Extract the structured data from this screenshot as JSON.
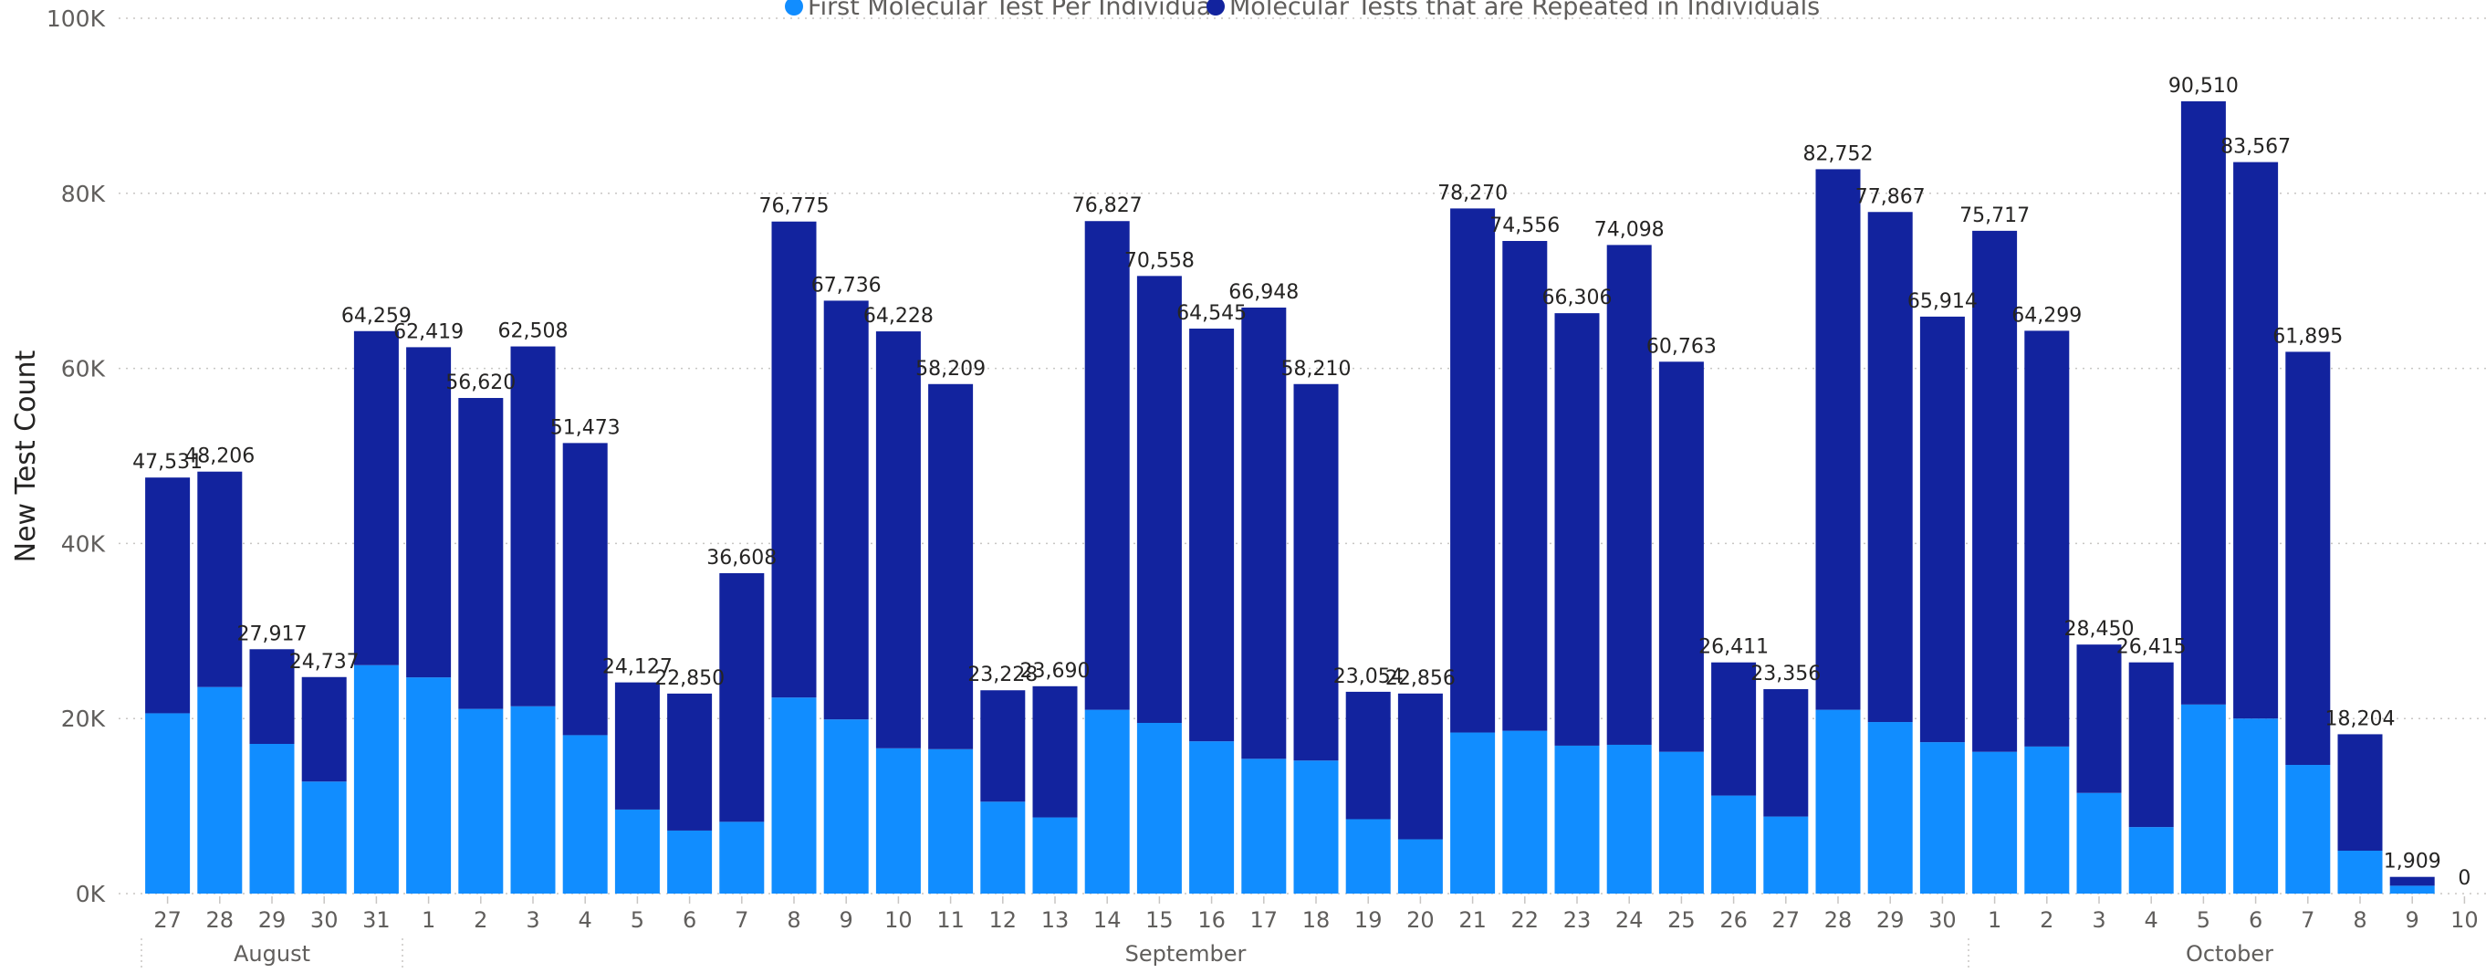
{
  "colors": {
    "first_test": "#118dff",
    "repeated_test": "#12239e",
    "gridline": "#c8c6c4",
    "axis_text": "#605e5c",
    "label_text": "#252423"
  },
  "chart_data": {
    "type": "bar",
    "stacked": true,
    "ylabel": "New Test Count",
    "xlabel": "",
    "ylim": [
      0,
      100000
    ],
    "y_ticks": [
      "0K",
      "20K",
      "40K",
      "60K",
      "80K",
      "100K"
    ],
    "grid": true,
    "legend_position": "top",
    "categories": [
      "27",
      "28",
      "29",
      "30",
      "31",
      "1",
      "2",
      "3",
      "4",
      "5",
      "6",
      "7",
      "8",
      "9",
      "10",
      "11",
      "12",
      "13",
      "14",
      "15",
      "16",
      "17",
      "18",
      "19",
      "20",
      "21",
      "22",
      "23",
      "24",
      "25",
      "26",
      "27",
      "28",
      "29",
      "30",
      "1",
      "2",
      "3",
      "4",
      "5",
      "6",
      "7",
      "8",
      "9",
      "10"
    ],
    "category_groups": [
      {
        "label": "August",
        "count": 5
      },
      {
        "label": "September",
        "count": 30
      },
      {
        "label": "October",
        "count": 10
      }
    ],
    "series": [
      {
        "name": "First Molecular Test Per Individual",
        "color": "#118dff",
        "values": [
          20600,
          23600,
          17100,
          12800,
          26100,
          24700,
          21100,
          21400,
          18100,
          9600,
          7200,
          8200,
          22400,
          19900,
          16600,
          16500,
          10500,
          8700,
          21000,
          19500,
          17400,
          15400,
          15200,
          8500,
          6200,
          18400,
          18600,
          16900,
          17000,
          16200,
          11200,
          8800,
          21000,
          19600,
          17300,
          16200,
          16800,
          11500,
          7600,
          21600,
          20000,
          14700,
          4900,
          900,
          0
        ]
      },
      {
        "name": "Molecular Tests that are Repeated in Individuals",
        "color": "#12239e",
        "values": [
          26931,
          24606,
          10817,
          11937,
          38159,
          37719,
          35520,
          41108,
          33373,
          14527,
          15650,
          28408,
          54375,
          47836,
          47628,
          41709,
          12728,
          14990,
          55827,
          51058,
          47145,
          51548,
          43010,
          14554,
          16656,
          59870,
          55956,
          49406,
          57098,
          44563,
          15211,
          14556,
          61752,
          58267,
          48614,
          59517,
          47499,
          16950,
          18815,
          68910,
          63567,
          47195,
          13304,
          1009,
          0
        ]
      }
    ],
    "totals": [
      "47,531",
      "48,206",
      "27,917",
      "24,737",
      "64,259",
      "62,419",
      "56,620",
      "62,508",
      "51,473",
      "24,127",
      "22,850",
      "36,608",
      "76,775",
      "67,736",
      "64,228",
      "58,209",
      "23,228",
      "23,690",
      "76,827",
      "70,558",
      "64,545",
      "66,948",
      "58,210",
      "23,054",
      "22,856",
      "78,270",
      "74,556",
      "66,306",
      "74,098",
      "60,763",
      "26,411",
      "23,356",
      "82,752",
      "77,867",
      "65,914",
      "75,717",
      "64,299",
      "28,450",
      "26,415",
      "90,510",
      "83,567",
      "61,895",
      "18,204",
      "1,909",
      "0"
    ]
  }
}
